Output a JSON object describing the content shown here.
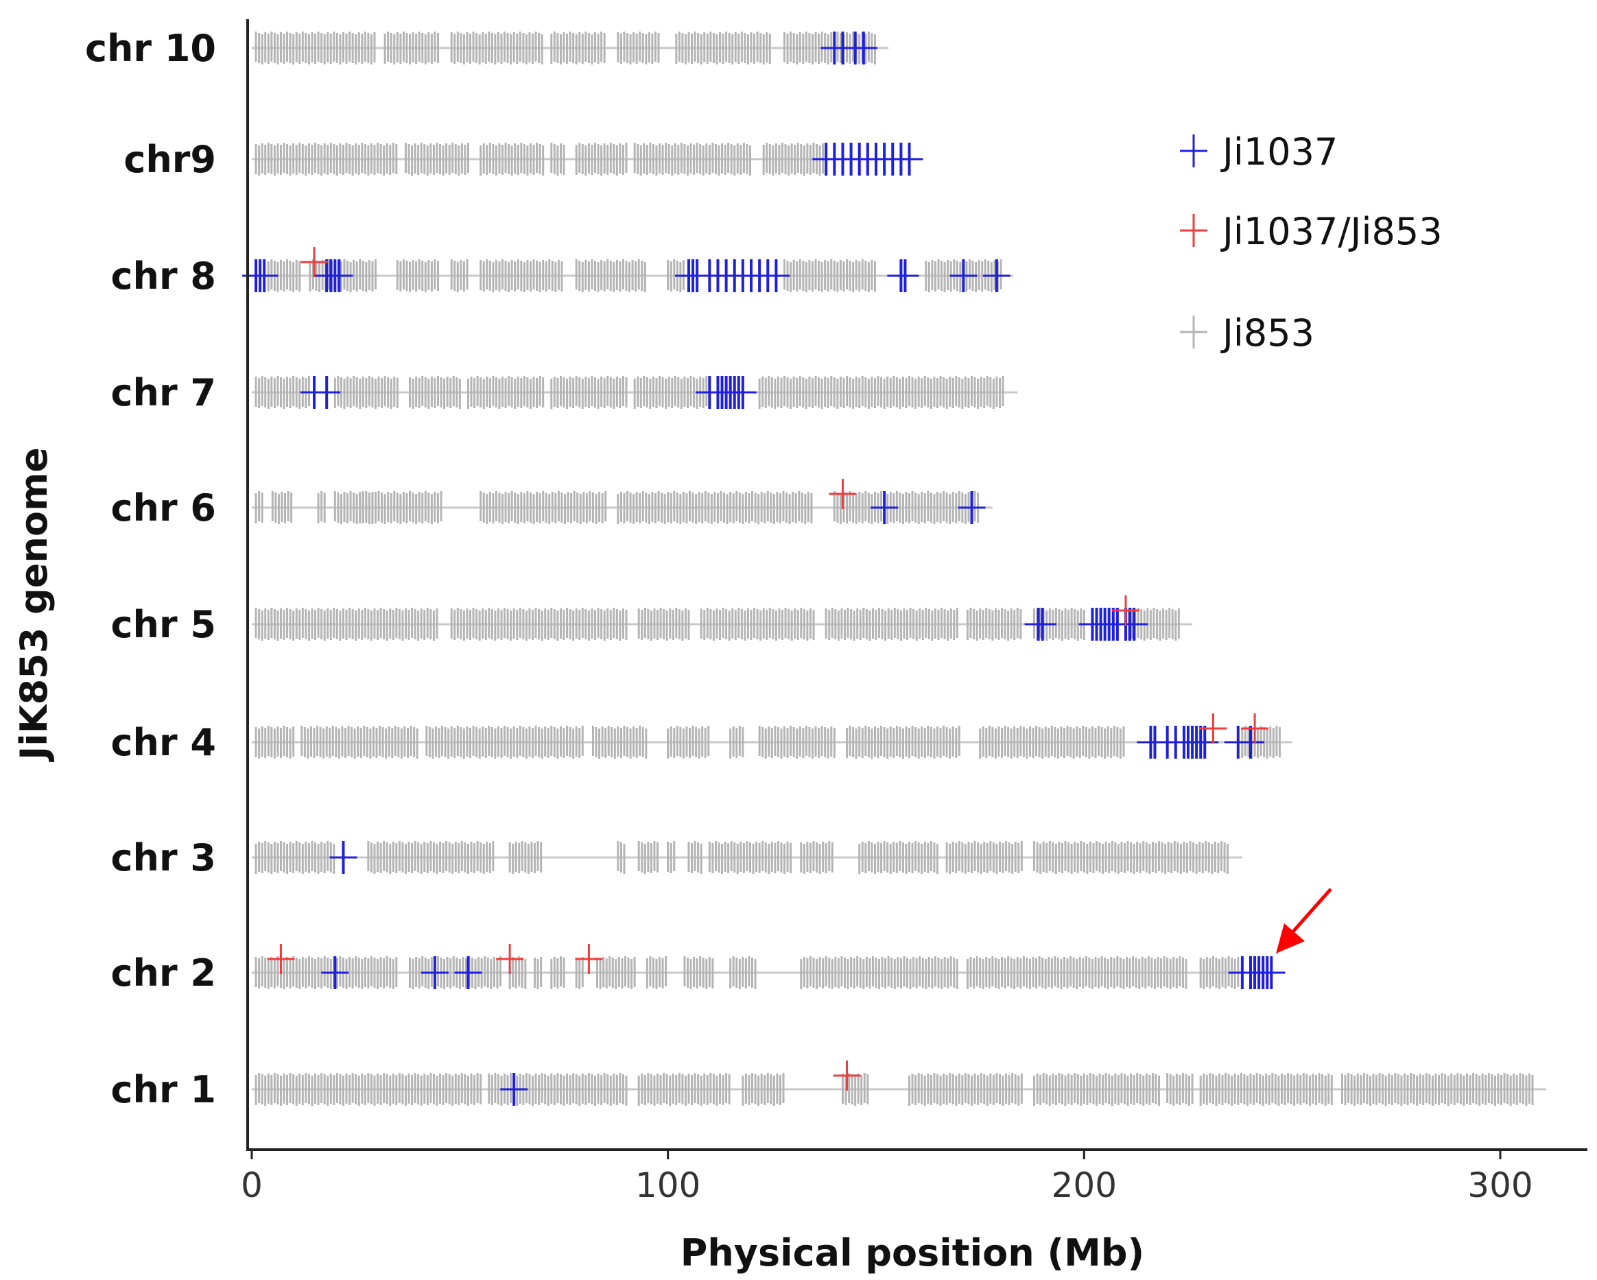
{
  "chart_data": {
    "type": "scatter",
    "title": "",
    "xlabel": "Physical position (Mb)",
    "ylabel": "JiK853 genome",
    "xlim": [
      0,
      315
    ],
    "xticks": [
      0,
      100,
      200,
      300
    ],
    "categories": [
      "chr 10",
      "chr9",
      "chr 8",
      "chr 7",
      "chr 6",
      "chr 5",
      "chr 4",
      "chr 3",
      "chr 2",
      "chr 1"
    ],
    "legend": [
      {
        "name": "Ji1037",
        "color": "#1f1fe0"
      },
      {
        "name": "Ji1037/Ji853",
        "color": "#f03c3c"
      },
      {
        "name": "Ji853",
        "color": "#b4b4b4"
      }
    ],
    "legend_position": "top-right",
    "annotation": "red arrow pointing to Ji1037 block on chr 2 near 242 Mb",
    "chromosomes": [
      {
        "name": "chr 10",
        "length": 150,
        "ji853_segments": [
          [
            1,
            30
          ],
          [
            32,
            45
          ],
          [
            48,
            70
          ],
          [
            72,
            85
          ],
          [
            88,
            98
          ],
          [
            102,
            125
          ],
          [
            128,
            150
          ]
        ],
        "ji1037": [
          140,
          142,
          145,
          147
        ],
        "ji1037_ji853": []
      },
      {
        "name": "chr9",
        "length": 158,
        "ji853_segments": [
          [
            1,
            35
          ],
          [
            37,
            52
          ],
          [
            55,
            70
          ],
          [
            72,
            75
          ],
          [
            78,
            90
          ],
          [
            92,
            120
          ],
          [
            123,
            138
          ]
        ],
        "ji1037": [
          138,
          140,
          142,
          144,
          146,
          148,
          150,
          152,
          154,
          156,
          158
        ],
        "ji1037_ji853": []
      },
      {
        "name": "chr 8",
        "length": 180,
        "ji853_segments": [
          [
            4,
            12
          ],
          [
            14,
            30
          ],
          [
            35,
            45
          ],
          [
            48,
            52
          ],
          [
            55,
            75
          ],
          [
            78,
            95
          ],
          [
            100,
            104
          ],
          [
            128,
            150
          ],
          [
            162,
            180
          ]
        ],
        "ji1037": [
          1,
          2,
          3,
          18,
          19,
          20,
          21,
          105,
          106,
          107,
          110,
          112,
          114,
          116,
          118,
          120,
          122,
          124,
          126,
          156,
          157,
          171,
          179
        ],
        "ji1037_ji853": [
          15
        ]
      },
      {
        "name": "chr 7",
        "length": 181,
        "ji853_segments": [
          [
            1,
            14
          ],
          [
            20,
            35
          ],
          [
            38,
            50
          ],
          [
            52,
            70
          ],
          [
            72,
            90
          ],
          [
            92,
            110
          ],
          [
            122,
            181
          ]
        ],
        "ji1037": [
          15,
          18,
          110,
          112,
          113,
          114,
          115,
          116,
          117,
          118
        ],
        "ji1037_ji853": []
      },
      {
        "name": "chr 6",
        "length": 175,
        "ji853_segments": [
          [
            1,
            3
          ],
          [
            5,
            10
          ],
          [
            16,
            18
          ],
          [
            20,
            30
          ],
          [
            26,
            46
          ],
          [
            55,
            85
          ],
          [
            88,
            135
          ],
          [
            140,
            175
          ]
        ],
        "ji1037": [
          152,
          173
        ],
        "ji1037_ji853": [
          142
        ]
      },
      {
        "name": "chr 5",
        "length": 223,
        "ji853_segments": [
          [
            1,
            45
          ],
          [
            48,
            90
          ],
          [
            93,
            105
          ],
          [
            108,
            135
          ],
          [
            138,
            170
          ],
          [
            172,
            185
          ],
          [
            188,
            200
          ],
          [
            210,
            223
          ]
        ],
        "ji1037": [
          189,
          190,
          202,
          203,
          204,
          205,
          206,
          207,
          208,
          210,
          211,
          212
        ],
        "ji1037_ji853": [
          210
        ]
      },
      {
        "name": "chr 4",
        "length": 247,
        "ji853_segments": [
          [
            1,
            10
          ],
          [
            12,
            40
          ],
          [
            42,
            80
          ],
          [
            82,
            95
          ],
          [
            100,
            110
          ],
          [
            115,
            118
          ],
          [
            122,
            140
          ],
          [
            143,
            170
          ],
          [
            175,
            210
          ],
          [
            238,
            247
          ]
        ],
        "ji1037": [
          216,
          217,
          220,
          222,
          224,
          225,
          226,
          227,
          228,
          229,
          237,
          240
        ],
        "ji1037_ji853": [
          231,
          241
        ]
      },
      {
        "name": "chr 3",
        "length": 235,
        "ji853_segments": [
          [
            1,
            20
          ],
          [
            28,
            58
          ],
          [
            62,
            70
          ],
          [
            88,
            90
          ],
          [
            93,
            98
          ],
          [
            100,
            102
          ],
          [
            105,
            108
          ],
          [
            110,
            130
          ],
          [
            132,
            140
          ],
          [
            146,
            165
          ],
          [
            167,
            185
          ],
          [
            188,
            235
          ]
        ],
        "ji1037": [
          22
        ],
        "ji1037_ji853": []
      },
      {
        "name": "chr 2",
        "length": 240,
        "ji853_segments": [
          [
            1,
            35
          ],
          [
            38,
            60
          ],
          [
            62,
            66
          ],
          [
            68,
            70
          ],
          [
            72,
            75
          ],
          [
            78,
            80
          ],
          [
            83,
            92
          ],
          [
            95,
            100
          ],
          [
            104,
            111
          ],
          [
            115,
            121
          ],
          [
            132,
            170
          ],
          [
            172,
            225
          ],
          [
            228,
            237
          ]
        ],
        "ji1037": [
          20,
          44,
          52,
          238,
          240,
          241,
          242,
          243,
          244,
          245
        ],
        "ji1037_ji853": [
          7,
          62,
          81
        ]
      },
      {
        "name": "chr 1",
        "length": 308,
        "ji853_segments": [
          [
            1,
            55
          ],
          [
            57,
            90
          ],
          [
            93,
            115
          ],
          [
            118,
            128
          ],
          [
            142,
            148
          ],
          [
            158,
            185
          ],
          [
            188,
            218
          ],
          [
            220,
            226
          ],
          [
            228,
            260
          ],
          [
            262,
            308
          ]
        ],
        "ji1037": [
          63
        ],
        "ji1037_ji853": [
          143
        ]
      }
    ]
  }
}
